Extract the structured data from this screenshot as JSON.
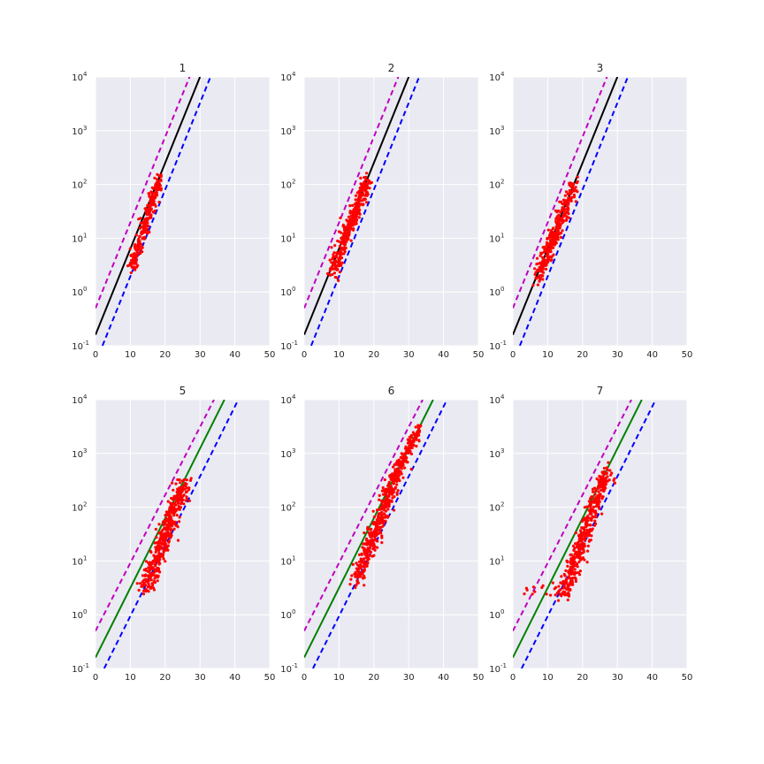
{
  "chart_data": [
    {
      "type": "scatter",
      "title": "1",
      "xlim": [
        0,
        50
      ],
      "ylim": [
        0.1,
        10000
      ],
      "yscale": "log",
      "grid": true,
      "x_ticks": [
        0,
        10,
        20,
        30,
        40,
        50
      ],
      "y_ticks": [
        {
          "base": "10",
          "exp": "-1"
        },
        {
          "base": "10",
          "exp": "0"
        },
        {
          "base": "10",
          "exp": "1"
        },
        {
          "base": "10",
          "exp": "2"
        },
        {
          "base": "10",
          "exp": "3"
        },
        {
          "base": "10",
          "exp": "4"
        }
      ],
      "lines": [
        {
          "role": "fit",
          "style": "solid",
          "color": "#000000",
          "points": [
            [
              0,
              0.16
            ],
            [
              30,
              10000
            ]
          ]
        },
        {
          "role": "upper",
          "style": "dashed",
          "color": "#bf00bf",
          "points": [
            [
              0,
              0.5
            ],
            [
              27,
              10000
            ]
          ]
        },
        {
          "role": "lower",
          "style": "dashed",
          "color": "#0000ff",
          "points": [
            [
              2,
              0.1
            ],
            [
              33,
              10000
            ]
          ]
        }
      ],
      "scatter_clusters": [
        {
          "x_start": 10.5,
          "x_end": 18.5,
          "y_start": 3.0,
          "y_end": 130,
          "spread": 1.2,
          "count": 260
        }
      ]
    },
    {
      "type": "scatter",
      "title": "2",
      "xlim": [
        0,
        50
      ],
      "ylim": [
        0.1,
        10000
      ],
      "yscale": "log",
      "grid": true,
      "x_ticks": [
        0,
        10,
        20,
        30,
        40,
        50
      ],
      "y_ticks": [
        {
          "base": "10",
          "exp": "-1"
        },
        {
          "base": "10",
          "exp": "0"
        },
        {
          "base": "10",
          "exp": "1"
        },
        {
          "base": "10",
          "exp": "2"
        },
        {
          "base": "10",
          "exp": "3"
        },
        {
          "base": "10",
          "exp": "4"
        }
      ],
      "lines": [
        {
          "role": "fit",
          "style": "solid",
          "color": "#000000",
          "points": [
            [
              0,
              0.16
            ],
            [
              30,
              10000
            ]
          ]
        },
        {
          "role": "upper",
          "style": "dashed",
          "color": "#bf00bf",
          "points": [
            [
              0,
              0.5
            ],
            [
              27,
              10000
            ]
          ]
        },
        {
          "role": "lower",
          "style": "dashed",
          "color": "#0000ff",
          "points": [
            [
              2,
              0.1
            ],
            [
              33,
              10000
            ]
          ]
        }
      ],
      "scatter_clusters": [
        {
          "x_start": 8.0,
          "x_end": 18.0,
          "y_start": 2.2,
          "y_end": 120,
          "spread": 1.6,
          "count": 320
        }
      ]
    },
    {
      "type": "scatter",
      "title": "3",
      "xlim": [
        0,
        50
      ],
      "ylim": [
        0.1,
        10000
      ],
      "yscale": "log",
      "grid": true,
      "x_ticks": [
        0,
        10,
        20,
        30,
        40,
        50
      ],
      "y_ticks": [
        {
          "base": "10",
          "exp": "-1"
        },
        {
          "base": "10",
          "exp": "0"
        },
        {
          "base": "10",
          "exp": "1"
        },
        {
          "base": "10",
          "exp": "2"
        },
        {
          "base": "10",
          "exp": "3"
        },
        {
          "base": "10",
          "exp": "4"
        }
      ],
      "lines": [
        {
          "role": "fit",
          "style": "solid",
          "color": "#000000",
          "points": [
            [
              0,
              0.16
            ],
            [
              30,
              10000
            ]
          ]
        },
        {
          "role": "upper",
          "style": "dashed",
          "color": "#bf00bf",
          "points": [
            [
              0,
              0.5
            ],
            [
              27,
              10000
            ]
          ]
        },
        {
          "role": "lower",
          "style": "dashed",
          "color": "#0000ff",
          "points": [
            [
              2,
              0.1
            ],
            [
              33,
              10000
            ]
          ]
        }
      ],
      "scatter_clusters": [
        {
          "x_start": 7.0,
          "x_end": 17.5,
          "y_start": 1.8,
          "y_end": 100,
          "spread": 1.6,
          "count": 320
        }
      ]
    },
    {
      "type": "scatter",
      "title": "5",
      "xlim": [
        0,
        50
      ],
      "ylim": [
        0.1,
        10000
      ],
      "yscale": "log",
      "grid": true,
      "x_ticks": [
        0,
        10,
        20,
        30,
        40,
        50
      ],
      "y_ticks": [
        {
          "base": "10",
          "exp": "-1"
        },
        {
          "base": "10",
          "exp": "0"
        },
        {
          "base": "10",
          "exp": "1"
        },
        {
          "base": "10",
          "exp": "2"
        },
        {
          "base": "10",
          "exp": "3"
        },
        {
          "base": "10",
          "exp": "4"
        }
      ],
      "lines": [
        {
          "role": "fit",
          "style": "solid",
          "color": "#008000",
          "points": [
            [
              0,
              0.16
            ],
            [
              37,
              10000
            ]
          ]
        },
        {
          "role": "upper",
          "style": "dashed",
          "color": "#bf00bf",
          "points": [
            [
              0,
              0.5
            ],
            [
              34,
              10000
            ]
          ]
        },
        {
          "role": "lower",
          "style": "dashed",
          "color": "#0000ff",
          "points": [
            [
              2.5,
              0.1
            ],
            [
              41,
              10000
            ]
          ]
        }
      ],
      "scatter_clusters": [
        {
          "x_start": 14.5,
          "x_end": 25.5,
          "y_start": 3.0,
          "y_end": 300,
          "spread": 2.4,
          "count": 420
        }
      ]
    },
    {
      "type": "scatter",
      "title": "6",
      "xlim": [
        0,
        50
      ],
      "ylim": [
        0.1,
        10000
      ],
      "yscale": "log",
      "grid": true,
      "x_ticks": [
        0,
        10,
        20,
        30,
        40,
        50
      ],
      "y_ticks": [
        {
          "base": "10",
          "exp": "-1"
        },
        {
          "base": "10",
          "exp": "0"
        },
        {
          "base": "10",
          "exp": "1"
        },
        {
          "base": "10",
          "exp": "2"
        },
        {
          "base": "10",
          "exp": "3"
        },
        {
          "base": "10",
          "exp": "4"
        }
      ],
      "lines": [
        {
          "role": "fit",
          "style": "solid",
          "color": "#008000",
          "points": [
            [
              0,
              0.16
            ],
            [
              37,
              10000
            ]
          ]
        },
        {
          "role": "upper",
          "style": "dashed",
          "color": "#bf00bf",
          "points": [
            [
              0,
              0.5
            ],
            [
              34,
              10000
            ]
          ]
        },
        {
          "role": "lower",
          "style": "dashed",
          "color": "#0000ff",
          "points": [
            [
              2.5,
              0.1
            ],
            [
              41,
              10000
            ]
          ]
        }
      ],
      "scatter_clusters": [
        {
          "x_start": 15.0,
          "x_end": 26.5,
          "y_start": 4.5,
          "y_end": 400,
          "spread": 1.8,
          "count": 380
        },
        {
          "x_start": 26.0,
          "x_end": 33.0,
          "y_start": 400,
          "y_end": 2800,
          "spread": 1.2,
          "count": 150
        }
      ]
    },
    {
      "type": "scatter",
      "title": "7",
      "xlim": [
        0,
        50
      ],
      "ylim": [
        0.1,
        10000
      ],
      "yscale": "log",
      "grid": true,
      "x_ticks": [
        0,
        10,
        20,
        30,
        40,
        50
      ],
      "y_ticks": [
        {
          "base": "10",
          "exp": "-1"
        },
        {
          "base": "10",
          "exp": "0"
        },
        {
          "base": "10",
          "exp": "1"
        },
        {
          "base": "10",
          "exp": "2"
        },
        {
          "base": "10",
          "exp": "3"
        },
        {
          "base": "10",
          "exp": "4"
        }
      ],
      "lines": [
        {
          "role": "fit",
          "style": "solid",
          "color": "#008000",
          "points": [
            [
              0,
              0.16
            ],
            [
              37,
              10000
            ]
          ]
        },
        {
          "role": "upper",
          "style": "dashed",
          "color": "#bf00bf",
          "points": [
            [
              0,
              0.5
            ],
            [
              34,
              10000
            ]
          ]
        },
        {
          "role": "lower",
          "style": "dashed",
          "color": "#0000ff",
          "points": [
            [
              2.5,
              0.1
            ],
            [
              41,
              10000
            ]
          ]
        }
      ],
      "scatter_clusters": [
        {
          "x_start": 14.0,
          "x_end": 27.0,
          "y_start": 2.0,
          "y_end": 450,
          "spread": 2.0,
          "count": 420
        },
        {
          "x_start": 3.0,
          "x_end": 13.0,
          "y_start": 2.6,
          "y_end": 2.6,
          "spread": 0.2,
          "count": 14
        }
      ]
    }
  ]
}
